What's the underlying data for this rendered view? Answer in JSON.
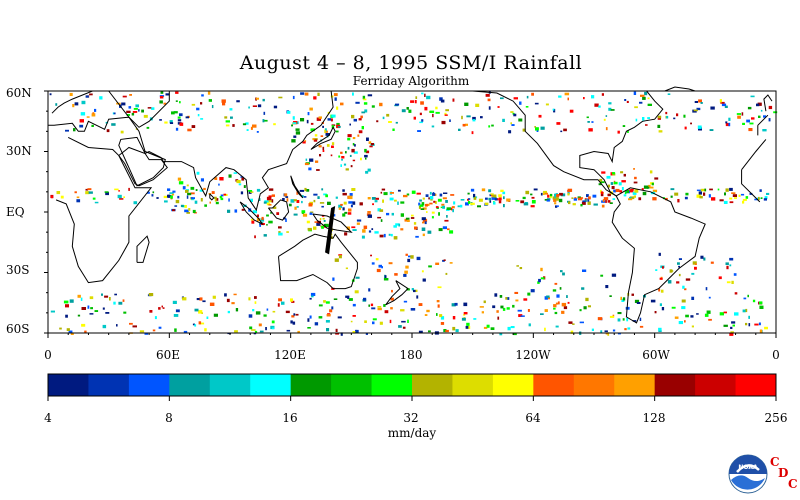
{
  "title": "August 4 – 8, 1995 SSM/I Rainfall",
  "subtitle": "Ferriday Algorithm",
  "lat_labels": [
    "60N",
    "30N",
    "EQ",
    "30S",
    "60S"
  ],
  "lon_labels": [
    "0",
    "60E",
    "120E",
    "180",
    "120W",
    "60W",
    "0"
  ],
  "colorbar": {
    "units": "mm/day",
    "tick_labels": [
      "4",
      "8",
      "16",
      "32",
      "64",
      "128",
      "256"
    ],
    "colors": [
      "#001a80",
      "#0033b3",
      "#0055ff",
      "#00a0a0",
      "#00c8c8",
      "#00ffff",
      "#009900",
      "#00c000",
      "#00ff00",
      "#b3b300",
      "#dddd00",
      "#ffff00",
      "#ff5500",
      "#ff7700",
      "#ffa000",
      "#990000",
      "#cc0000",
      "#ff0000"
    ]
  },
  "logo": {
    "noaa_text": "NOAA",
    "cdc_letters": [
      "C",
      "D",
      "C"
    ],
    "noaa_color": "#0055aa",
    "cdc_color": "#dd0000"
  }
}
